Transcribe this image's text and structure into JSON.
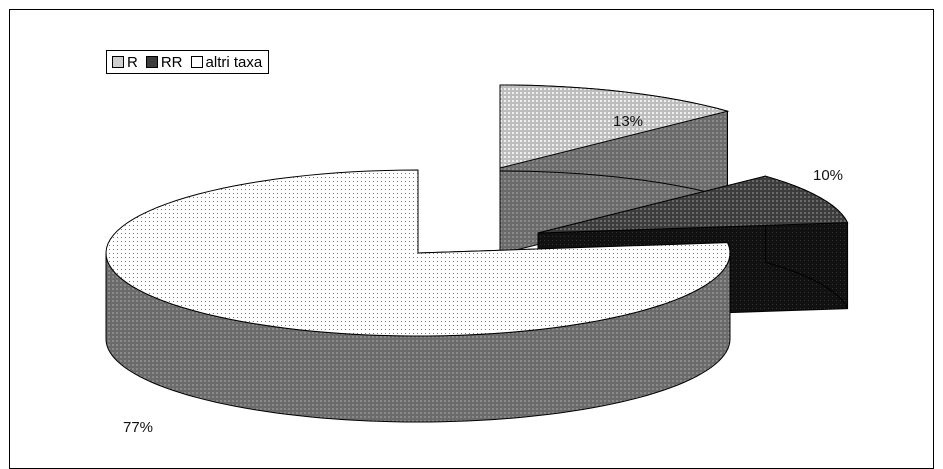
{
  "chart_data": {
    "type": "pie",
    "style": "3d-exploded",
    "legend_position": "top-left",
    "categories": [
      "R",
      "RR",
      "altri taxa"
    ],
    "values": [
      13,
      10,
      77
    ],
    "labels": [
      "13%",
      "10%",
      "77%"
    ],
    "colors": [
      "#cfcfcf",
      "#4a4a4a",
      "#f2f2f2"
    ],
    "side_colors": [
      "#6d6d6d",
      "#1e1e1e",
      "#6f6f6f"
    ]
  }
}
